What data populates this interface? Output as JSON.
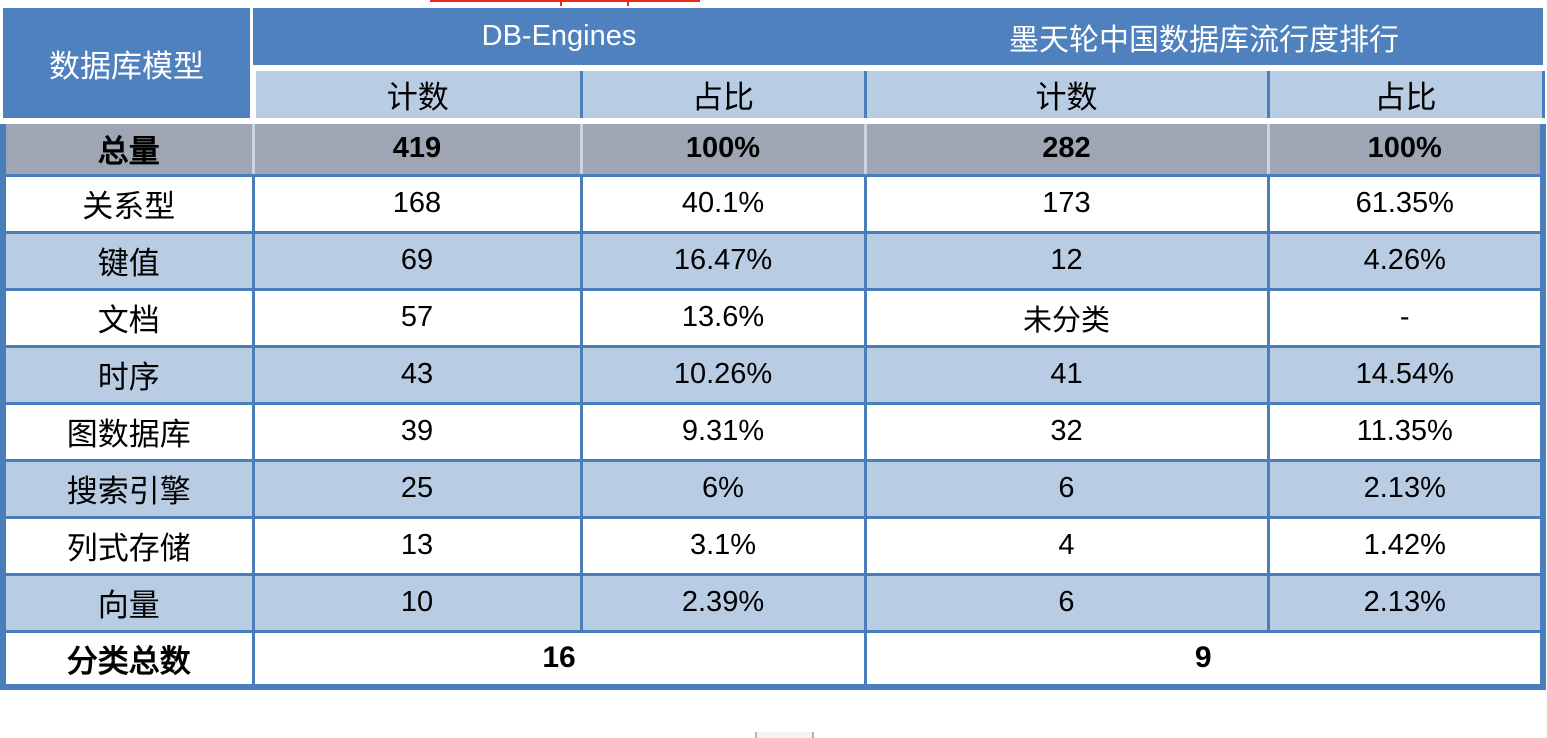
{
  "chart_data": {
    "type": "table",
    "row_header_label": "数据库模型",
    "column_groups": [
      {
        "label": "DB-Engines",
        "span": 2
      },
      {
        "label": "墨天轮中国数据库流行度排行",
        "span": 2
      }
    ],
    "sub_columns": [
      "计数",
      "占比",
      "计数",
      "占比"
    ],
    "total_row": {
      "label": "总量",
      "values": [
        "419",
        "100%",
        "282",
        "100%"
      ]
    },
    "rows": [
      {
        "label": "关系型",
        "values": [
          "168",
          "40.1%",
          "173",
          "61.35%"
        ]
      },
      {
        "label": "键值",
        "values": [
          "69",
          "16.47%",
          "12",
          "4.26%"
        ]
      },
      {
        "label": "文档",
        "values": [
          "57",
          "13.6%",
          "未分类",
          "-"
        ]
      },
      {
        "label": "时序",
        "values": [
          "43",
          "10.26%",
          "41",
          "14.54%"
        ]
      },
      {
        "label": "图数据库",
        "values": [
          "39",
          "9.31%",
          "32",
          "11.35%"
        ]
      },
      {
        "label": "搜索引擎",
        "values": [
          "25",
          "6%",
          "6",
          "2.13%"
        ]
      },
      {
        "label": "列式存储",
        "values": [
          "13",
          "3.1%",
          "4",
          "1.42%"
        ]
      },
      {
        "label": "向量",
        "values": [
          "10",
          "2.39%",
          "6",
          "2.13%"
        ]
      }
    ],
    "footer_row": {
      "label": "分类总数",
      "db_engines_total": "16",
      "motianlun_total": "9"
    }
  },
  "colors": {
    "header_blue": "#4E81BD",
    "light_blue": "#B8CCE4",
    "total_gray": "#9EA6B3",
    "border_blue": "#4A7EBB",
    "total_divider": "#C8D4E4",
    "red_fragment": "#E8291C"
  }
}
